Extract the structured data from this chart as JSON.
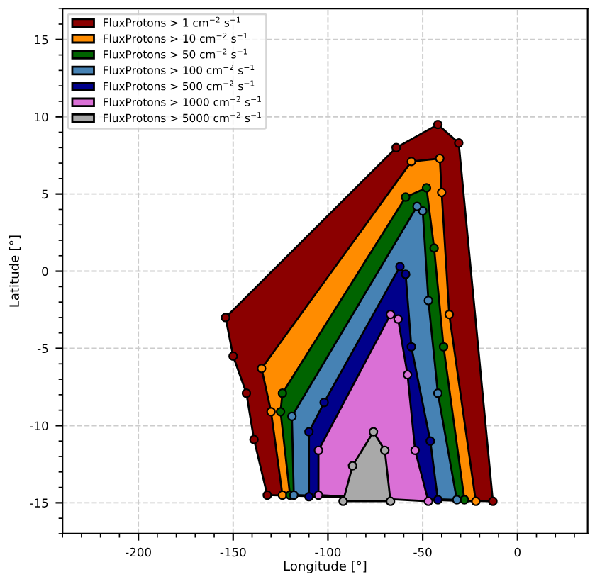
{
  "chart_data": {
    "type": "area",
    "xlabel": "Longitude [°]",
    "ylabel": "Latitude [°]",
    "xlim": [
      -240,
      37
    ],
    "ylim": [
      -17,
      17
    ],
    "xticks": [
      -200,
      -150,
      -100,
      -50,
      0
    ],
    "yticks": [
      -15,
      -10,
      -5,
      0,
      5,
      10,
      15
    ],
    "grid": true,
    "legend": "top left",
    "marker": "circle",
    "series": [
      {
        "name": "FluxProtons > 1 cm$^{−2}$ s$^{−1}$",
        "color": "#8b0000",
        "x": [
          -154,
          -150,
          -143,
          -139,
          -132,
          -13,
          -31,
          -42,
          -64
        ],
        "values": [
          -3.0,
          -5.5,
          -7.9,
          -10.9,
          -14.5,
          -14.9,
          8.3,
          9.5,
          8.0
        ]
      },
      {
        "name": "FluxProtons > 10 cm$^{−2}$ s$^{−1}$",
        "color": "#ff8c00",
        "x": [
          -135,
          -130,
          -124,
          -22,
          -36,
          -40,
          -41,
          -56
        ],
        "values": [
          -6.3,
          -9.1,
          -14.5,
          -14.9,
          -2.8,
          5.1,
          7.3,
          7.1
        ]
      },
      {
        "name": "FluxProtons > 50 cm$^{−2}$ s$^{−1}$",
        "color": "#006400",
        "x": [
          -124,
          -125,
          -120,
          -28,
          -39,
          -44,
          -48,
          -59
        ],
        "values": [
          -7.9,
          -9.1,
          -14.5,
          -14.8,
          -4.9,
          1.5,
          5.4,
          4.8
        ]
      },
      {
        "name": "FluxProtons > 100 cm$^{−2}$ s$^{−1}$",
        "color": "#4682b4",
        "x": [
          -119,
          -118,
          -32,
          -42,
          -47,
          -50,
          -53
        ],
        "values": [
          -9.4,
          -14.5,
          -14.8,
          -7.9,
          -1.9,
          3.9,
          4.2
        ]
      },
      {
        "name": "FluxProtons > 500 cm$^{−2}$ s$^{−1}$",
        "color": "#00008b",
        "x": [
          -102,
          -110,
          -110,
          -42,
          -46,
          -56,
          -59,
          -62
        ],
        "values": [
          -8.5,
          -10.4,
          -14.6,
          -14.8,
          -11.0,
          -4.9,
          -0.2,
          0.3
        ]
      },
      {
        "name": "FluxProtons > 1000 cm$^{−2}$ s$^{−1}$",
        "color": "#da70d6",
        "x": [
          -105,
          -105,
          -47,
          -54,
          -58,
          -63,
          -67
        ],
        "values": [
          -11.6,
          -14.5,
          -14.9,
          -11.6,
          -6.7,
          -3.1,
          -2.8
        ]
      },
      {
        "name": "FluxProtons > 5000 cm$^{−2}$ s$^{−1}$",
        "color": "#a9a9a9",
        "x": [
          -87,
          -92,
          -67,
          -70,
          -76
        ],
        "values": [
          -12.6,
          -14.9,
          -14.9,
          -11.6,
          -10.4
        ]
      }
    ]
  }
}
